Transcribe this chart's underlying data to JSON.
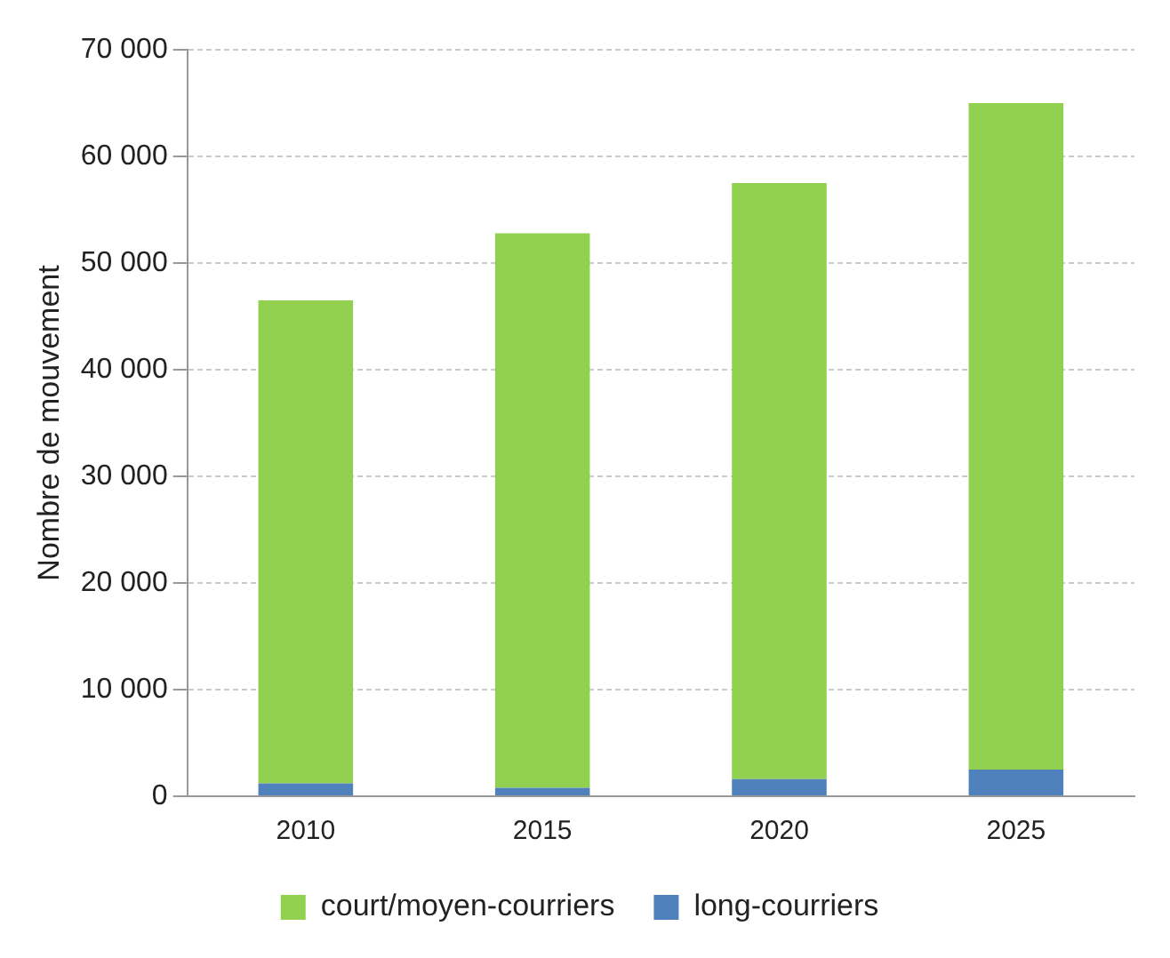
{
  "chart_data": {
    "type": "bar",
    "ylabel": "Nombre de mouvement",
    "categories": [
      "2010",
      "2015",
      "2020",
      "2025"
    ],
    "stacked": true,
    "series": [
      {
        "name": "long-courriers",
        "color": "#4f81bd",
        "values": [
          1200,
          800,
          1600,
          2500
        ]
      },
      {
        "name": "court/moyen-courriers",
        "color": "#92d050",
        "values": [
          45300,
          52000,
          55900,
          62500
        ]
      }
    ],
    "ylim": [
      0,
      70000
    ],
    "yticks": [
      {
        "value": 0,
        "label": "0"
      },
      {
        "value": 10000,
        "label": "10 000"
      },
      {
        "value": 20000,
        "label": "20 000"
      },
      {
        "value": 30000,
        "label": "30 000"
      },
      {
        "value": 40000,
        "label": "40 000"
      },
      {
        "value": 50000,
        "label": "50 000"
      },
      {
        "value": 60000,
        "label": "60 000"
      },
      {
        "value": 70000,
        "label": "70 000"
      }
    ],
    "grid": "y",
    "legend": "bottom"
  }
}
